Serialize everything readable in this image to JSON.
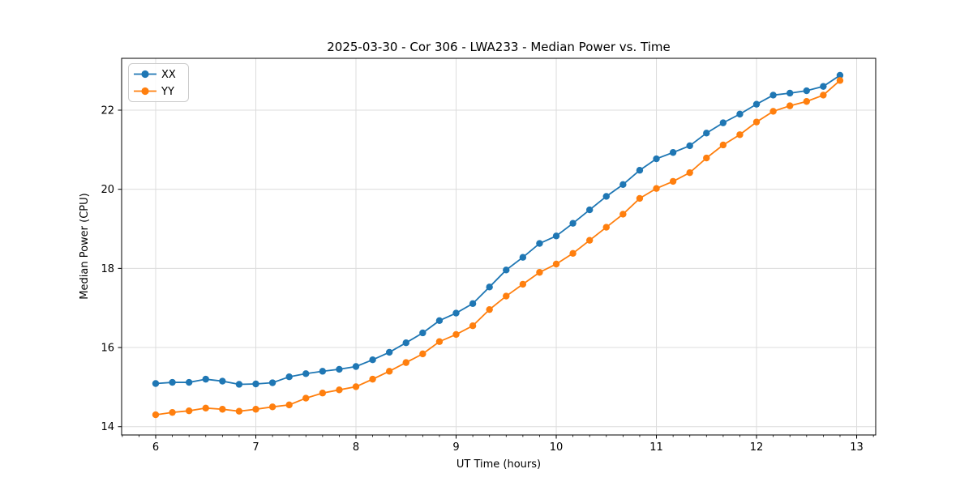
{
  "window": {
    "background": "#ffffff"
  },
  "chart_data": {
    "type": "line",
    "title": "2025-03-30 - Cor 306 - LWA233 - Median Power vs. Time",
    "xlabel": "UT Time (hours)",
    "ylabel": "Median Power (CPU)",
    "xlim": [
      5.66,
      13.19
    ],
    "ylim": [
      13.79,
      23.31
    ],
    "xticks": [
      6,
      7,
      8,
      9,
      10,
      11,
      12,
      13
    ],
    "yticks": [
      14,
      16,
      18,
      20,
      22
    ],
    "x_minor_tick_interval": 0.16667,
    "grid": true,
    "grid_color": "#dcdcdc",
    "legend_position": "upper left",
    "marker": "circle",
    "x": [
      6.0,
      6.1667,
      6.3333,
      6.5,
      6.6667,
      6.8333,
      7.0,
      7.1667,
      7.3333,
      7.5,
      7.6667,
      7.8333,
      8.0,
      8.1667,
      8.3333,
      8.5,
      8.6667,
      8.8333,
      9.0,
      9.1667,
      9.3333,
      9.5,
      9.6667,
      9.8333,
      10.0,
      10.1667,
      10.3333,
      10.5,
      10.6667,
      10.8333,
      11.0,
      11.1667,
      11.3333,
      11.5,
      11.6667,
      11.8333,
      12.0,
      12.1667,
      12.3333,
      12.5,
      12.6667,
      12.8333
    ],
    "series": [
      {
        "name": "XX",
        "color": "#1f77b4",
        "values": [
          15.09,
          15.12,
          15.12,
          15.2,
          15.15,
          15.07,
          15.08,
          15.11,
          15.26,
          15.34,
          15.4,
          15.45,
          15.52,
          15.69,
          15.88,
          16.12,
          16.37,
          16.68,
          16.87,
          17.11,
          17.53,
          17.96,
          18.28,
          18.63,
          18.82,
          19.14,
          19.48,
          19.82,
          20.12,
          20.48,
          20.77,
          20.93,
          21.1,
          21.42,
          21.68,
          21.9,
          22.15,
          22.38,
          22.43,
          22.49,
          22.6,
          22.88
        ]
      },
      {
        "name": "YY",
        "color": "#ff7f0e",
        "values": [
          14.3,
          14.36,
          14.4,
          14.47,
          14.44,
          14.39,
          14.44,
          14.5,
          14.55,
          14.72,
          14.85,
          14.93,
          15.01,
          15.2,
          15.4,
          15.62,
          15.84,
          16.15,
          16.33,
          16.55,
          16.96,
          17.3,
          17.6,
          17.9,
          18.11,
          18.38,
          18.71,
          19.04,
          19.37,
          19.77,
          20.02,
          20.2,
          20.42,
          20.79,
          21.12,
          21.38,
          21.7,
          21.97,
          22.11,
          22.22,
          22.38,
          22.75
        ]
      }
    ]
  }
}
